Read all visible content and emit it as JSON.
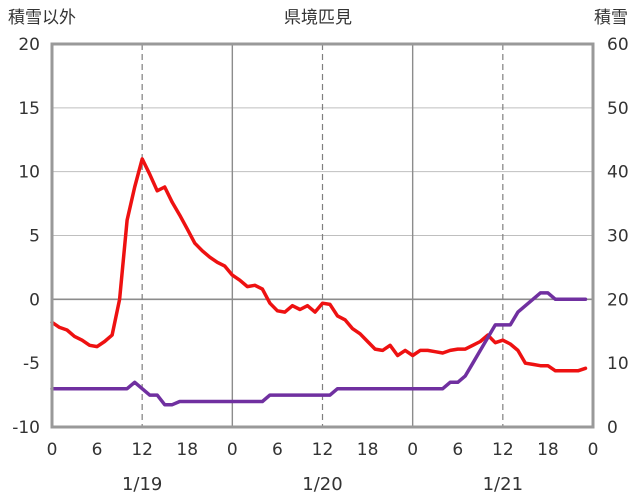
{
  "chart_data": {
    "type": "line",
    "title": "県境匹見",
    "left_axis_title": "積雪以外",
    "right_axis_title": "積雪",
    "x_hours_per_day": 24,
    "x_tick_labels": [
      "0",
      "6",
      "12",
      "18",
      "0",
      "6",
      "12",
      "18",
      "0",
      "6",
      "12",
      "18",
      "0"
    ],
    "date_labels": [
      "1/19",
      "1/20",
      "1/21"
    ],
    "y_left": {
      "range": [
        -10,
        20
      ],
      "ticks": [
        "-10",
        "-5",
        "0",
        "5",
        "10",
        "15",
        "20"
      ]
    },
    "y_right": {
      "range": [
        0,
        60
      ],
      "ticks": [
        "0",
        "10",
        "20",
        "30",
        "40",
        "50",
        "60"
      ]
    },
    "grid": {
      "vertical_dashed_hours": [
        12,
        36,
        60
      ],
      "vertical_solid_hours": [
        24,
        48
      ],
      "horizontal_at": [
        0,
        5,
        10,
        15
      ]
    },
    "series": [
      {
        "color": "#ee1111",
        "axis": "left",
        "x": [
          0,
          1,
          2,
          3,
          4,
          5,
          6,
          7,
          8,
          9,
          10,
          11,
          12,
          13,
          14,
          15,
          16,
          17,
          18,
          19,
          20,
          21,
          22,
          23,
          24,
          25,
          26,
          27,
          28,
          29,
          30,
          31,
          32,
          33,
          34,
          35,
          36,
          37,
          38,
          39,
          40,
          41,
          42,
          43,
          44,
          45,
          46,
          47,
          48,
          49,
          50,
          51,
          52,
          53,
          54,
          55,
          56,
          57,
          58,
          59,
          60,
          61,
          62,
          63,
          64,
          65,
          66,
          67,
          68,
          69,
          70,
          71
        ],
        "values": [
          -1.8,
          -2.2,
          -2.4,
          -2.9,
          -3.2,
          -3.6,
          -3.7,
          -3.3,
          -2.8,
          0,
          6.2,
          8.8,
          11,
          9.8,
          8.5,
          8.8,
          7.6,
          6.6,
          5.5,
          4.4,
          3.8,
          3.3,
          2.9,
          2.6,
          1.9,
          1.5,
          1,
          1.1,
          0.8,
          -0.3,
          -0.9,
          -1,
          -0.5,
          -0.8,
          -0.5,
          -1,
          -0.3,
          -0.4,
          -1.3,
          -1.6,
          -2.3,
          -2.7,
          -3.3,
          -3.9,
          -4,
          -3.6,
          -4.4,
          -4,
          -4.4,
          -4,
          -4,
          -4.1,
          -4.2,
          -4,
          -3.9,
          -3.9,
          -3.6,
          -3.3,
          -2.8,
          -3.4,
          -3.2,
          -3.5,
          -4,
          -5,
          -5.1,
          -5.2,
          -5.2,
          -5.6,
          -5.6,
          -5.6,
          -5.6,
          -5.4
        ]
      },
      {
        "color": "#7030a0",
        "axis": "right",
        "x": [
          0,
          1,
          2,
          3,
          4,
          5,
          6,
          7,
          8,
          9,
          10,
          11,
          12,
          13,
          14,
          15,
          16,
          17,
          18,
          19,
          20,
          21,
          22,
          23,
          24,
          25,
          26,
          27,
          28,
          29,
          30,
          31,
          32,
          33,
          34,
          35,
          36,
          37,
          38,
          39,
          40,
          41,
          42,
          43,
          44,
          45,
          46,
          47,
          48,
          49,
          50,
          51,
          52,
          53,
          54,
          55,
          56,
          57,
          58,
          59,
          60,
          61,
          62,
          63,
          64,
          65,
          66,
          67,
          68,
          69,
          70,
          71
        ],
        "values": [
          6,
          6,
          6,
          6,
          6,
          6,
          6,
          6,
          6,
          6,
          6,
          7,
          6,
          5,
          5,
          3.5,
          3.5,
          4,
          4,
          4,
          4,
          4,
          4,
          4,
          4,
          4,
          4,
          4,
          4,
          5,
          5,
          5,
          5,
          5,
          5,
          5,
          5,
          5,
          6,
          6,
          6,
          6,
          6,
          6,
          6,
          6,
          6,
          6,
          6,
          6,
          6,
          6,
          6,
          7,
          7,
          8,
          10,
          12,
          14,
          16,
          16,
          16,
          18,
          19,
          20,
          21,
          21,
          20,
          20,
          20,
          20,
          20
        ]
      }
    ]
  }
}
